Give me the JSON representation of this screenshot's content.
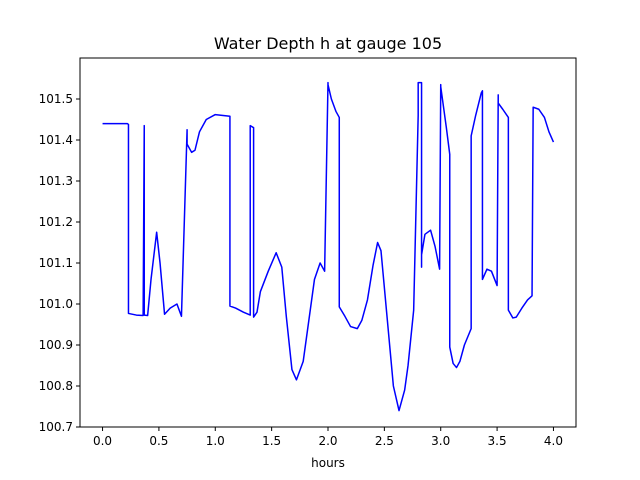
{
  "chart_data": {
    "type": "line",
    "title": "Water Depth h at gauge 105",
    "xlabel": "hours",
    "ylabel": "",
    "xlim": [
      -0.2,
      4.2
    ],
    "ylim": [
      100.7,
      101.6
    ],
    "x_ticks": [
      0.0,
      0.5,
      1.0,
      1.5,
      2.0,
      2.5,
      3.0,
      3.5,
      4.0
    ],
    "x_tick_labels": [
      "0.0",
      "0.5",
      "1.0",
      "1.5",
      "2.0",
      "2.5",
      "3.0",
      "3.5",
      "4.0"
    ],
    "y_ticks": [
      100.7,
      100.8,
      100.9,
      101.0,
      101.1,
      101.2,
      101.3,
      101.4,
      101.5
    ],
    "y_tick_labels": [
      "100.7",
      "100.8",
      "100.9",
      "101.0",
      "101.1",
      "101.2",
      "101.3",
      "101.4",
      "101.5"
    ],
    "grid": false,
    "legend": "none",
    "series": [
      {
        "color": "#0000ff",
        "x": [
          0.0,
          0.22,
          0.23,
          0.23,
          0.3,
          0.36,
          0.37,
          0.37,
          0.4,
          0.43,
          0.48,
          0.51,
          0.55,
          0.6,
          0.66,
          0.7,
          0.75,
          0.75,
          0.79,
          0.82,
          0.86,
          0.92,
          1.0,
          1.06,
          1.13,
          1.13,
          1.18,
          1.25,
          1.31,
          1.31,
          1.34,
          1.34,
          1.37,
          1.4,
          1.47,
          1.54,
          1.59,
          1.63,
          1.68,
          1.72,
          1.78,
          1.83,
          1.88,
          1.93,
          1.97,
          2.0,
          2.0,
          2.03,
          2.07,
          2.1,
          2.1,
          2.15,
          2.2,
          2.26,
          2.3,
          2.35,
          2.4,
          2.44,
          2.47,
          2.52,
          2.58,
          2.63,
          2.68,
          2.71,
          2.76,
          2.8,
          2.8,
          2.83,
          2.83,
          2.83,
          2.86,
          2.91,
          2.95,
          2.99,
          3.0,
          3.0,
          3.05,
          3.08,
          3.08,
          3.11,
          3.14,
          3.17,
          3.21,
          3.27,
          3.27,
          3.31,
          3.36,
          3.37,
          3.37,
          3.41,
          3.45,
          3.5,
          3.51,
          3.51,
          3.55,
          3.6,
          3.6,
          3.64,
          3.67,
          3.72,
          3.77,
          3.81,
          3.82,
          3.82,
          3.87,
          3.92,
          3.96,
          4.0
        ],
        "y": [
          101.44,
          101.44,
          101.438,
          100.977,
          100.973,
          100.972,
          101.435,
          100.973,
          100.972,
          101.06,
          101.175,
          101.1,
          100.975,
          100.99,
          101.0,
          100.97,
          101.425,
          101.39,
          101.37,
          101.375,
          101.42,
          101.45,
          101.462,
          101.46,
          101.458,
          100.995,
          100.99,
          100.98,
          100.973,
          101.435,
          101.43,
          100.968,
          100.98,
          101.03,
          101.08,
          101.125,
          101.09,
          100.97,
          100.84,
          100.815,
          100.86,
          100.96,
          101.06,
          101.1,
          101.08,
          101.54,
          101.535,
          101.5,
          101.47,
          101.455,
          100.993,
          100.97,
          100.945,
          100.94,
          100.96,
          101.01,
          101.095,
          101.15,
          101.13,
          100.98,
          100.8,
          100.74,
          100.79,
          100.85,
          100.985,
          101.46,
          101.54,
          101.54,
          101.09,
          101.12,
          101.17,
          101.18,
          101.14,
          101.085,
          101.535,
          101.53,
          101.43,
          101.365,
          100.895,
          100.855,
          100.845,
          100.86,
          100.9,
          100.94,
          101.41,
          101.46,
          101.515,
          101.52,
          101.06,
          101.085,
          101.08,
          101.045,
          101.51,
          101.49,
          101.475,
          101.455,
          100.985,
          100.966,
          100.968,
          100.99,
          101.01,
          101.02,
          101.48,
          101.48,
          101.475,
          101.455,
          101.42,
          101.395
        ]
      }
    ]
  }
}
